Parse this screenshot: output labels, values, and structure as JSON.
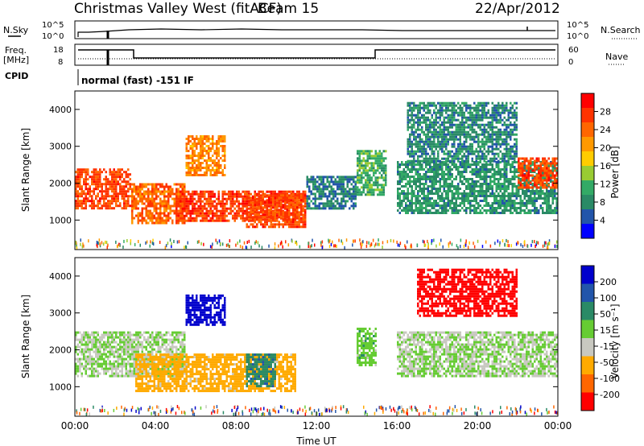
{
  "header": {
    "station": "Christmas Valley West (fitACF)",
    "beam": "Beam 15",
    "date": "22/Apr/2012"
  },
  "ancillary": {
    "nsky_label": "N.Sky",
    "nsky_ticks": [
      "10^5",
      "10^0"
    ],
    "nsearch_label": "N.Search",
    "nsearch_ticks": [
      "10^5",
      "10^0"
    ],
    "freq_label_line1": "Freq.",
    "freq_label_line2": "[MHz]",
    "freq_ticks": [
      "18",
      "8"
    ],
    "nave_label": "Nave",
    "nave_ticks": [
      "60",
      "0"
    ],
    "cpid_label": "CPID",
    "cpid_value": "normal (fast) -151 IF"
  },
  "colorbars": {
    "power": {
      "label": "Power [dB]",
      "ticks": [
        "28",
        "24",
        "20",
        "16",
        "12",
        "8",
        "4"
      ],
      "colors": [
        "#ff0000",
        "#ff3300",
        "#ff6600",
        "#ff9900",
        "#ffcc00",
        "#99cc33",
        "#33aa66",
        "#2a8a66",
        "#2255aa",
        "#0000ff"
      ]
    },
    "velocity": {
      "label": "Velocity [m s⁻¹]",
      "ticks": [
        "200",
        "100",
        "50",
        "15",
        "-15",
        "-50",
        "-100",
        "-200"
      ],
      "colors": [
        "#0000cc",
        "#2255aa",
        "#2a8a66",
        "#66cc33",
        "#c8c8c0",
        "#ffaa00",
        "#ff6600",
        "#ff0000"
      ]
    }
  },
  "chart_data": [
    {
      "type": "heatmap",
      "panel": "power",
      "ylabel": "Slant Range [km]",
      "yticks": [
        "4000",
        "3000",
        "2000",
        "1000"
      ],
      "ylim": [
        200,
        4500
      ],
      "xlim": [
        0,
        24
      ],
      "regions": [
        {
          "t": [
            0,
            2.8
          ],
          "r": [
            1300,
            2400
          ],
          "v": 26
        },
        {
          "t": [
            2.8,
            5.5
          ],
          "r": [
            950,
            2000
          ],
          "v": 24
        },
        {
          "t": [
            5.5,
            7.5
          ],
          "r": [
            2200,
            3300
          ],
          "v": 22
        },
        {
          "t": [
            5.0,
            11.5
          ],
          "r": [
            1000,
            1800
          ],
          "v": 27
        },
        {
          "t": [
            8.5,
            11.5
          ],
          "r": [
            800,
            1700
          ],
          "v": 26
        },
        {
          "t": [
            11.5,
            14.0
          ],
          "r": [
            1300,
            2200
          ],
          "v": 8
        },
        {
          "t": [
            14.0,
            15.5
          ],
          "r": [
            1700,
            2900
          ],
          "v": 12
        },
        {
          "t": [
            16.0,
            24.0
          ],
          "r": [
            1200,
            2600
          ],
          "v": 10
        },
        {
          "t": [
            22.0,
            24.0
          ],
          "r": [
            1900,
            2700
          ],
          "v": 26
        },
        {
          "t": [
            16.5,
            22.0
          ],
          "r": [
            2600,
            4200
          ],
          "v": 9
        }
      ]
    },
    {
      "type": "heatmap",
      "panel": "velocity",
      "ylabel": "Slant Range [km]",
      "yticks": [
        "4000",
        "3000",
        "2000",
        "1000"
      ],
      "xlabel": "Time UT",
      "xticks": [
        "00:00",
        "04:00",
        "08:00",
        "12:00",
        "16:00",
        "20:00",
        "00:00"
      ],
      "ylim": [
        200,
        4500
      ],
      "xlim": [
        0,
        24
      ],
      "regions": [
        {
          "t": [
            0,
            5.5
          ],
          "r": [
            1300,
            2500
          ],
          "v": 0
        },
        {
          "t": [
            3.0,
            11.0
          ],
          "r": [
            900,
            1900
          ],
          "v": -50
        },
        {
          "t": [
            5.5,
            7.5
          ],
          "r": [
            2700,
            3500
          ],
          "v": 200
        },
        {
          "t": [
            8.5,
            10.0
          ],
          "r": [
            1000,
            1900
          ],
          "v": 60
        },
        {
          "t": [
            14.0,
            15.0
          ],
          "r": [
            1600,
            2600
          ],
          "v": 15
        },
        {
          "t": [
            16.0,
            24.0
          ],
          "r": [
            1300,
            2500
          ],
          "v": 0
        },
        {
          "t": [
            17.0,
            22.0
          ],
          "r": [
            2900,
            4200
          ],
          "v": -200
        }
      ]
    }
  ]
}
